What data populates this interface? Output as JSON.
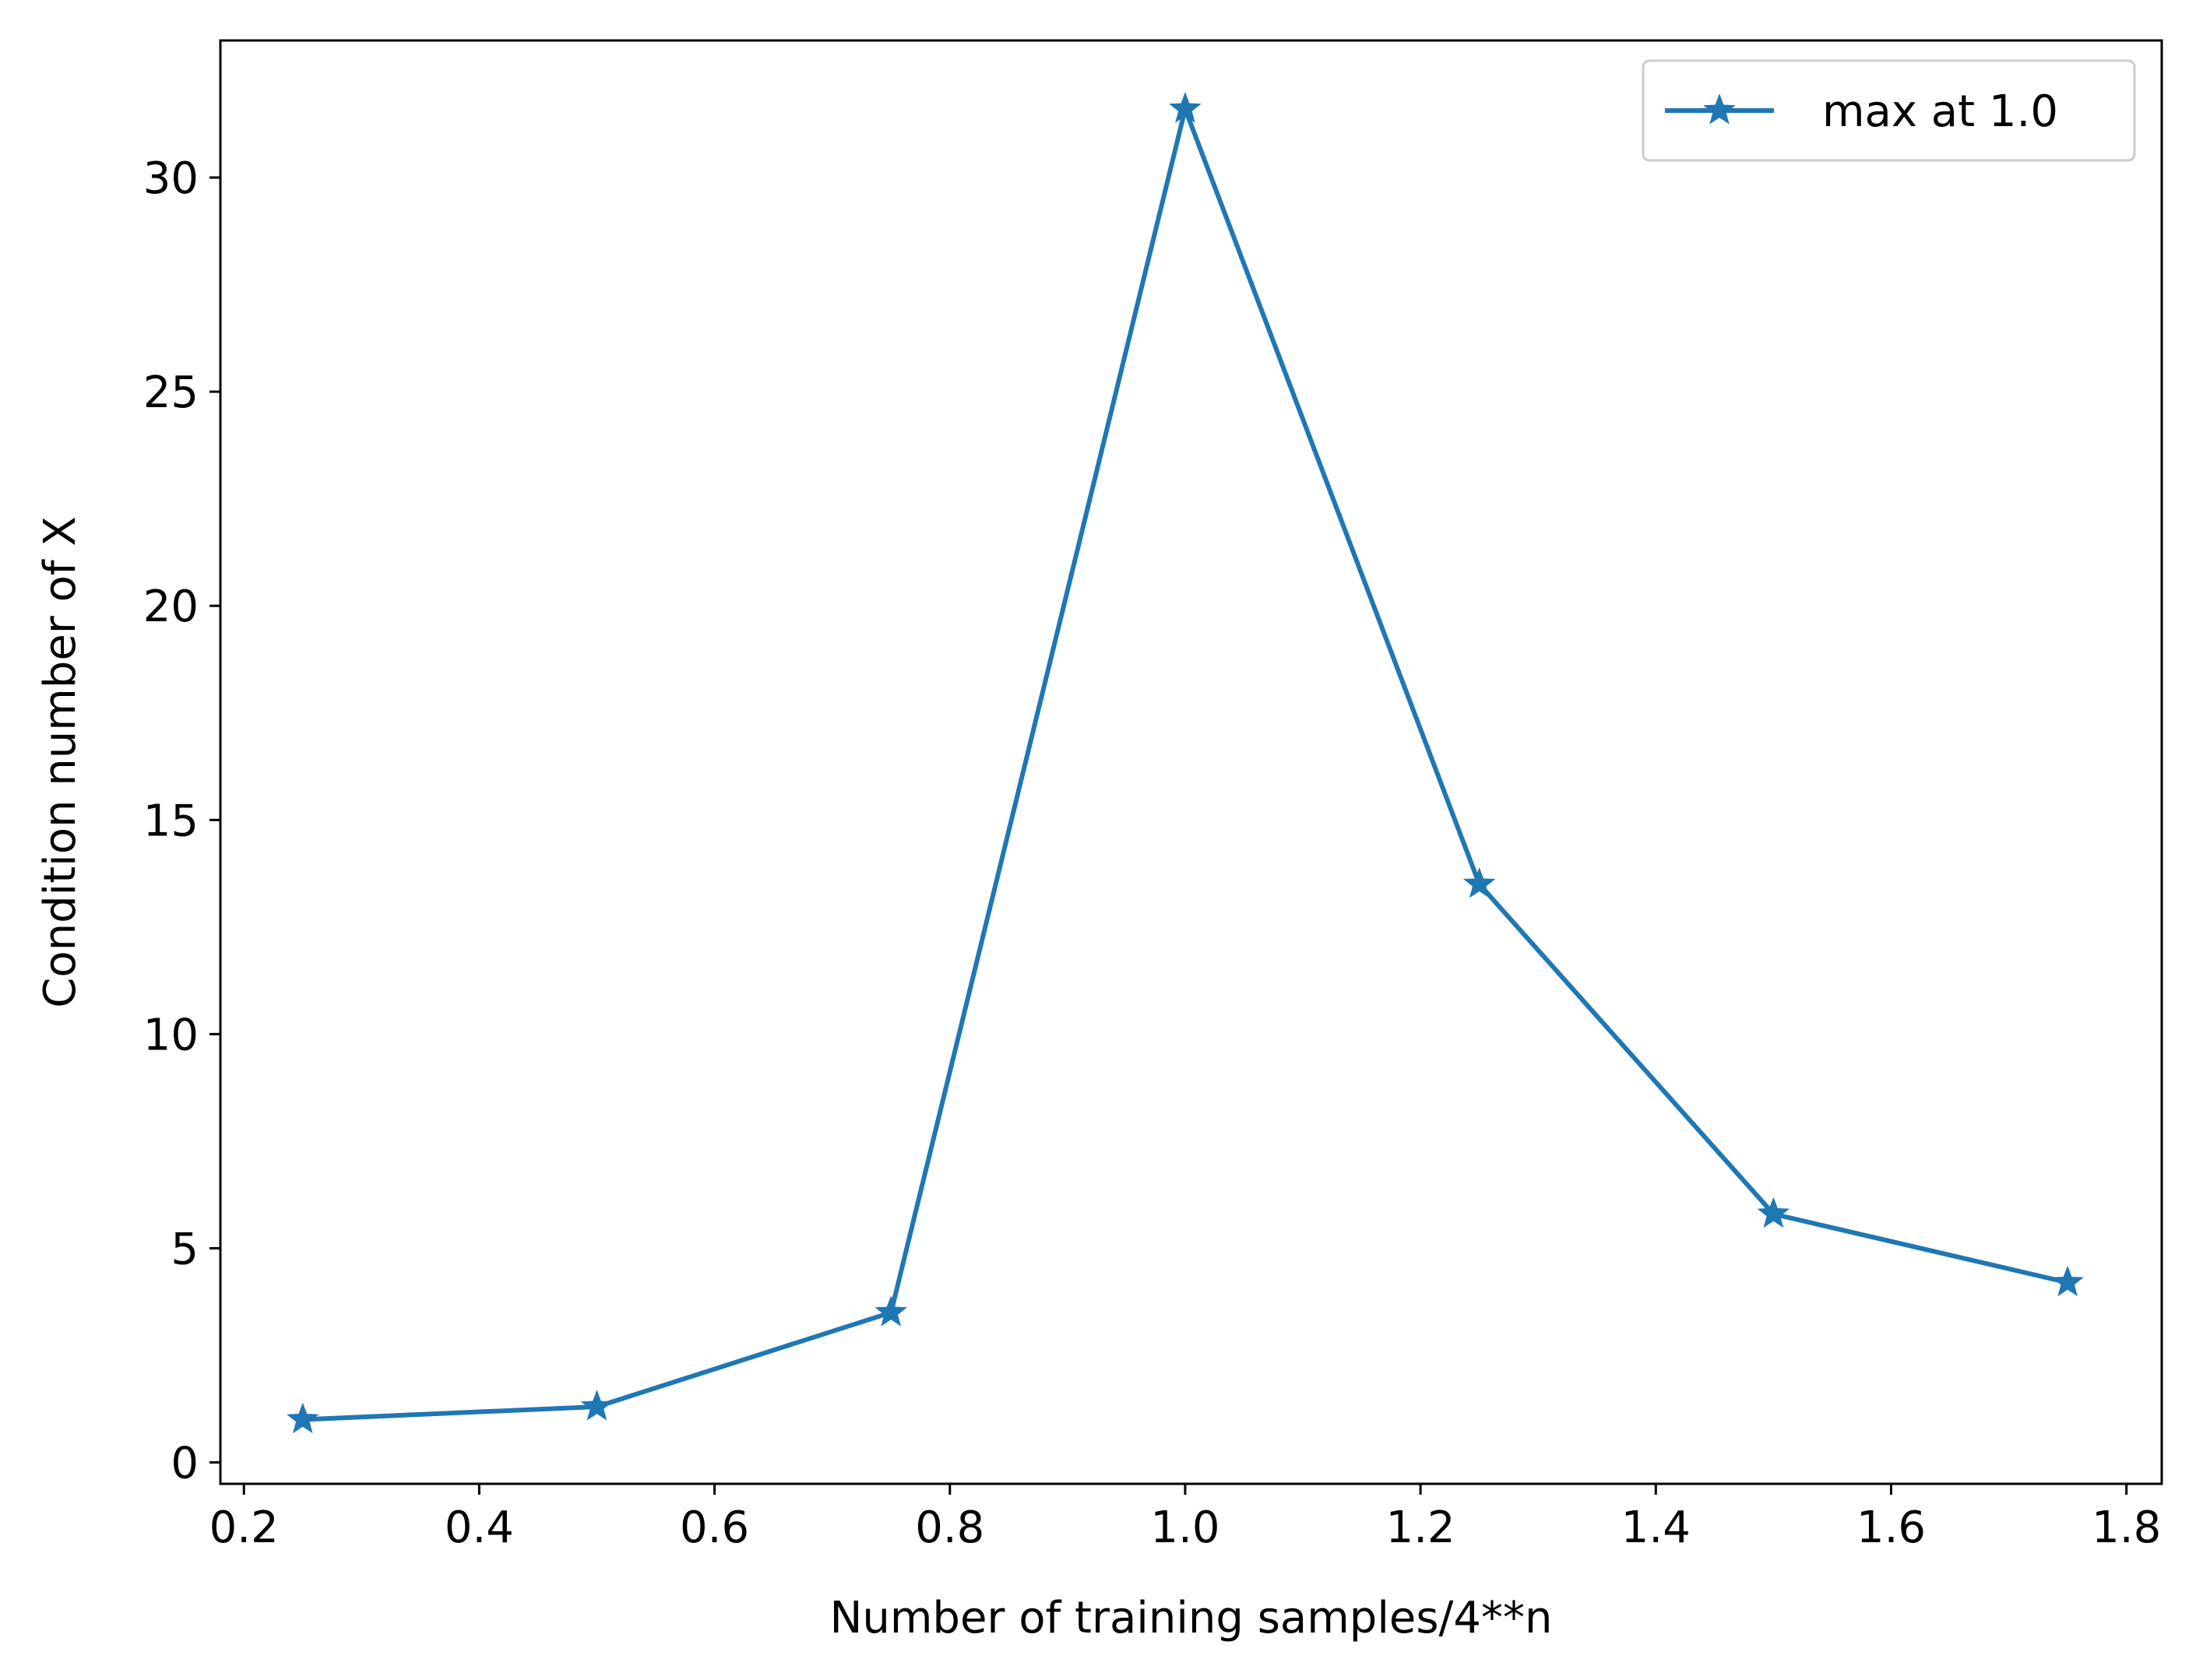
{
  "chart_data": {
    "type": "line",
    "title": "",
    "xlabel": "Number of training samples/4**n",
    "ylabel": "Condition number of X",
    "xlim": [
      0.18,
      1.83
    ],
    "ylim": [
      -0.5,
      33.2
    ],
    "xticks": [
      0.2,
      0.4,
      0.6,
      0.8,
      1.0,
      1.2,
      1.4,
      1.6,
      1.8
    ],
    "xtick_labels": [
      "0.2",
      "0.4",
      "0.6",
      "0.8",
      "1.0",
      "1.2",
      "1.4",
      "1.6",
      "1.8"
    ],
    "yticks": [
      0,
      5,
      10,
      15,
      20,
      25,
      30
    ],
    "ytick_labels": [
      "0",
      "5",
      "10",
      "15",
      "20",
      "25",
      "30"
    ],
    "grid": false,
    "legend_position": "top-right",
    "series": [
      {
        "name": "max at 1.0",
        "color": "#1f77b4",
        "marker": "star",
        "x": [
          0.25,
          0.5,
          0.75,
          1.0,
          1.25,
          1.5,
          1.75
        ],
        "y": [
          1.0,
          1.3,
          3.5,
          31.6,
          13.5,
          5.8,
          4.2
        ]
      }
    ]
  }
}
